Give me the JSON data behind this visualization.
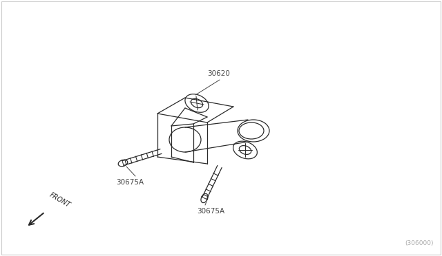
{
  "background_color": "#ffffff",
  "border_color": "#cccccc",
  "line_color": "#2a2a2a",
  "text_color": "#444444",
  "label_30620": "30620",
  "label_30675A_left": "30675A",
  "label_30675A_bottom": "30675A",
  "watermark": "(306000)",
  "front_label": "FRONT",
  "figsize": [
    6.4,
    3.72
  ],
  "dpi": 100
}
